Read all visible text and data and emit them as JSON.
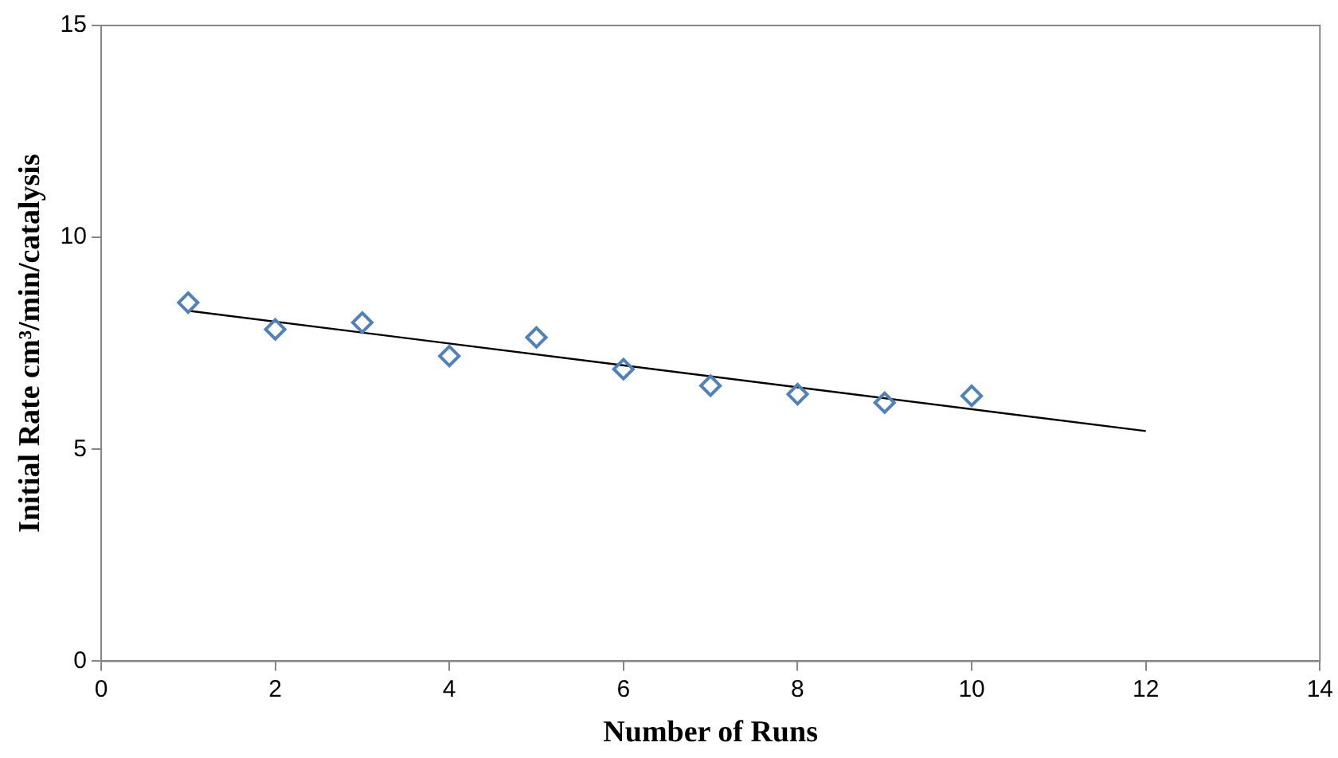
{
  "chart_data": {
    "type": "scatter",
    "xlabel": "Number of Runs",
    "ylabel": "Initial Rate cm³/min/catalysis",
    "xlim": [
      0,
      14
    ],
    "xticks": [
      0,
      2,
      4,
      6,
      8,
      10,
      12,
      14
    ],
    "ylim": [
      0,
      15
    ],
    "yticks": [
      0,
      5,
      10,
      15
    ],
    "marker": "diamond",
    "legend": false,
    "series": [
      {
        "color": "#4f81bd",
        "x": [
          1,
          2,
          3,
          4,
          5,
          6,
          7,
          8,
          9,
          10
        ],
        "values": [
          8.46,
          7.83,
          7.99,
          7.2,
          7.64,
          6.89,
          6.5,
          6.3,
          6.1,
          6.26
        ]
      },
      {
        "type": "line",
        "color": "#000000",
        "x": [
          1,
          12
        ],
        "values": [
          8.27,
          5.43
        ],
        "marker": "none"
      }
    ]
  }
}
